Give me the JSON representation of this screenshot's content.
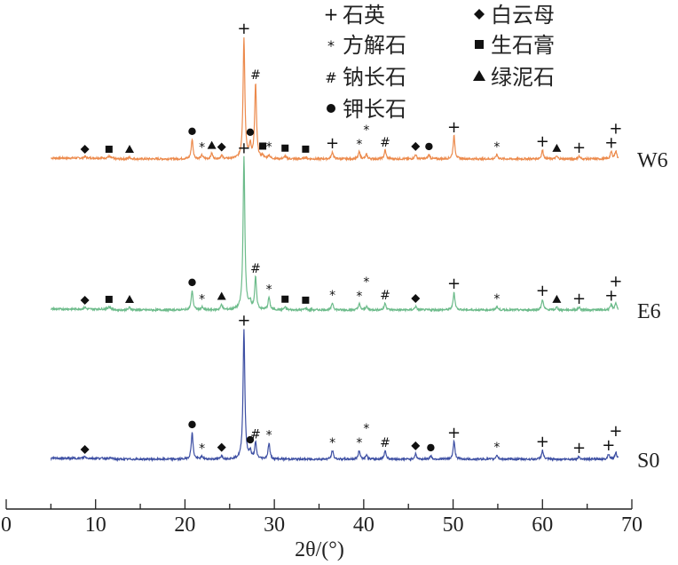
{
  "chart_data": {
    "type": "line",
    "title": "",
    "xlabel": "2θ/(°)",
    "ylabel": "",
    "xlim": [
      0,
      70
    ],
    "xticks": [
      "0",
      "10",
      "20",
      "30",
      "40",
      "50",
      "60",
      "70"
    ],
    "grid": false,
    "legend": [
      {
        "symbol": "+",
        "label": "石英"
      },
      {
        "symbol": "*",
        "label": "方解石"
      },
      {
        "symbol": "#",
        "label": "钠长石"
      },
      {
        "symbol": "●",
        "label": "钾长石"
      },
      {
        "symbol": "◆",
        "label": "白云母"
      },
      {
        "symbol": "■",
        "label": "生石膏"
      },
      {
        "symbol": "▲",
        "label": "绿泥石"
      }
    ],
    "legend_placement": "top-right",
    "x_range_measured": [
      5,
      68.5
    ],
    "series": [
      {
        "name": "W6",
        "color": "#ec8a4c",
        "offset": 450,
        "peaks": [
          [
            8.8,
            2
          ],
          [
            11.5,
            2
          ],
          [
            13.8,
            2
          ],
          [
            20.8,
            22
          ],
          [
            21.9,
            4
          ],
          [
            23.0,
            6
          ],
          [
            24.1,
            4
          ],
          [
            26.6,
            136
          ],
          [
            27.3,
            14
          ],
          [
            27.9,
            84
          ],
          [
            28.7,
            3
          ],
          [
            29.4,
            4
          ],
          [
            31.2,
            3
          ],
          [
            33.5,
            2
          ],
          [
            36.5,
            8
          ],
          [
            39.5,
            8
          ],
          [
            40.3,
            5
          ],
          [
            42.4,
            10
          ],
          [
            45.8,
            5
          ],
          [
            47.3,
            5
          ],
          [
            50.1,
            26
          ],
          [
            54.9,
            5
          ],
          [
            60.0,
            10
          ],
          [
            61.6,
            3
          ],
          [
            64.1,
            3
          ],
          [
            67.7,
            8
          ],
          [
            68.2,
            9
          ]
        ],
        "markers": [
          [
            8.8,
            "◆"
          ],
          [
            11.5,
            "■"
          ],
          [
            13.8,
            "▲"
          ],
          [
            20.8,
            "●"
          ],
          [
            21.9,
            "*"
          ],
          [
            23.0,
            "▲"
          ],
          [
            24.1,
            "◆"
          ],
          [
            26.6,
            "+"
          ],
          [
            27.3,
            "●"
          ],
          [
            27.9,
            "#"
          ],
          [
            28.7,
            "■"
          ],
          [
            29.4,
            "*"
          ],
          [
            31.2,
            "■"
          ],
          [
            33.5,
            "■"
          ],
          [
            36.5,
            "+"
          ],
          [
            39.5,
            "*"
          ],
          [
            40.3,
            "*"
          ],
          [
            42.4,
            "#"
          ],
          [
            45.8,
            "◆"
          ],
          [
            47.3,
            "●"
          ],
          [
            50.1,
            "+"
          ],
          [
            54.9,
            "*"
          ],
          [
            60.0,
            "+"
          ],
          [
            61.6,
            "▲"
          ],
          [
            64.1,
            "+"
          ],
          [
            67.7,
            "+"
          ],
          [
            68.2,
            "+"
          ]
        ]
      },
      {
        "name": "E6",
        "color": "#6cbb8a",
        "offset": 280,
        "peaks": [
          [
            8.8,
            2
          ],
          [
            11.5,
            3
          ],
          [
            13.8,
            3
          ],
          [
            20.8,
            22
          ],
          [
            21.9,
            3
          ],
          [
            24.1,
            6
          ],
          [
            26.6,
            172
          ],
          [
            27.3,
            8
          ],
          [
            27.9,
            36
          ],
          [
            29.4,
            14
          ],
          [
            31.2,
            3
          ],
          [
            33.5,
            2
          ],
          [
            36.5,
            8
          ],
          [
            39.5,
            7
          ],
          [
            40.3,
            4
          ],
          [
            42.4,
            8
          ],
          [
            45.8,
            4
          ],
          [
            50.1,
            20
          ],
          [
            54.9,
            4
          ],
          [
            60.0,
            12
          ],
          [
            61.6,
            3
          ],
          [
            64.1,
            3
          ],
          [
            67.7,
            6
          ],
          [
            68.2,
            8
          ]
        ],
        "markers": [
          [
            8.8,
            "◆"
          ],
          [
            11.5,
            "■"
          ],
          [
            13.8,
            "▲"
          ],
          [
            20.8,
            "●"
          ],
          [
            21.9,
            "*"
          ],
          [
            24.1,
            "▲"
          ],
          [
            26.6,
            "+"
          ],
          [
            27.9,
            "#"
          ],
          [
            29.4,
            "*"
          ],
          [
            31.2,
            "■"
          ],
          [
            33.5,
            "■"
          ],
          [
            36.5,
            "*"
          ],
          [
            39.5,
            "*"
          ],
          [
            40.3,
            "*"
          ],
          [
            42.4,
            "#"
          ],
          [
            45.8,
            "◆"
          ],
          [
            50.1,
            "+"
          ],
          [
            54.9,
            "*"
          ],
          [
            60.0,
            "+"
          ],
          [
            61.6,
            "▲"
          ],
          [
            64.1,
            "+"
          ],
          [
            67.7,
            "+"
          ],
          [
            68.2,
            "+"
          ]
        ]
      },
      {
        "name": "S0",
        "color": "#3d4fa3",
        "offset": 112,
        "peaks": [
          [
            8.8,
            2
          ],
          [
            20.8,
            30
          ],
          [
            21.9,
            3
          ],
          [
            24.1,
            4
          ],
          [
            26.6,
            146
          ],
          [
            27.3,
            8
          ],
          [
            27.9,
            18
          ],
          [
            29.4,
            18
          ],
          [
            36.5,
            10
          ],
          [
            39.5,
            10
          ],
          [
            40.3,
            5
          ],
          [
            42.4,
            10
          ],
          [
            45.8,
            6
          ],
          [
            47.5,
            4
          ],
          [
            50.1,
            20
          ],
          [
            54.9,
            5
          ],
          [
            60.0,
            10
          ],
          [
            64.1,
            3
          ],
          [
            67.4,
            6
          ],
          [
            68.2,
            8
          ]
        ],
        "markers": [
          [
            8.8,
            "◆"
          ],
          [
            20.8,
            "●"
          ],
          [
            21.9,
            "*"
          ],
          [
            24.1,
            "◆"
          ],
          [
            26.6,
            "+"
          ],
          [
            27.3,
            "●"
          ],
          [
            27.9,
            "#"
          ],
          [
            29.4,
            "*"
          ],
          [
            36.5,
            "*"
          ],
          [
            39.5,
            "*"
          ],
          [
            40.3,
            "*"
          ],
          [
            42.4,
            "#"
          ],
          [
            45.8,
            "◆"
          ],
          [
            47.5,
            "●"
          ],
          [
            50.1,
            "+"
          ],
          [
            54.9,
            "*"
          ],
          [
            60.0,
            "+"
          ],
          [
            64.1,
            "+"
          ],
          [
            67.4,
            "+"
          ],
          [
            68.2,
            "+"
          ]
        ]
      }
    ]
  }
}
